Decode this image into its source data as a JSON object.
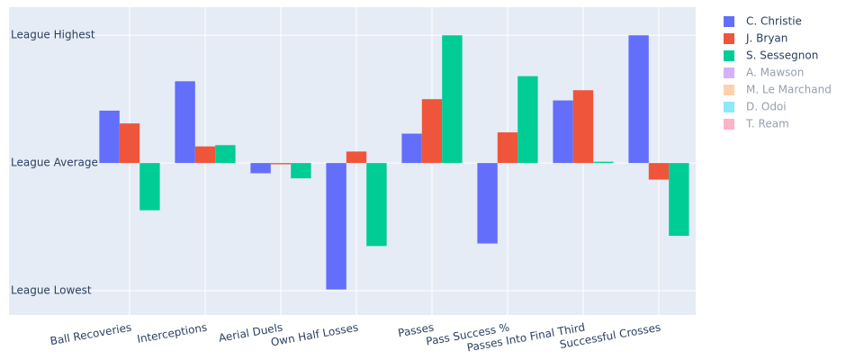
{
  "chart_data": {
    "type": "bar",
    "categories": [
      "Ball Recoveries",
      "Interceptions",
      "Aerial Duels",
      "Own Half Losses",
      "Passes",
      "Pass Success %",
      "Passes Into Final Third",
      "Successful Crosses"
    ],
    "series": [
      {
        "name": "C. Christie",
        "color": "#636efa",
        "values": [
          0.41,
          0.64,
          -0.08,
          -0.99,
          0.23,
          -0.63,
          0.49,
          1.0
        ]
      },
      {
        "name": "J. Bryan",
        "color": "#ef553b",
        "values": [
          0.31,
          0.13,
          -0.01,
          0.09,
          0.5,
          0.24,
          0.57,
          -0.13
        ]
      },
      {
        "name": "S. Sessegnon",
        "color": "#00cc96",
        "values": [
          -0.37,
          0.14,
          -0.12,
          -0.65,
          1.0,
          0.68,
          0.01,
          -0.57
        ]
      },
      {
        "name": "A. Mawson",
        "color": "#ab63fa",
        "visible": "legendonly"
      },
      {
        "name": "M. Le Marchand",
        "color": "#ffa15a",
        "visible": "legendonly"
      },
      {
        "name": "D. Odoi",
        "color": "#19d3f3",
        "visible": "legendonly"
      },
      {
        "name": "T. Ream",
        "color": "#ff6692",
        "visible": "legendonly"
      }
    ],
    "ylim": [
      -1.19,
      1.22
    ],
    "yticks": [
      {
        "value": -1,
        "label": "League Lowest"
      },
      {
        "value": 0,
        "label": "League Average"
      },
      {
        "value": 1,
        "label": "League Highest"
      }
    ],
    "grid": true
  }
}
